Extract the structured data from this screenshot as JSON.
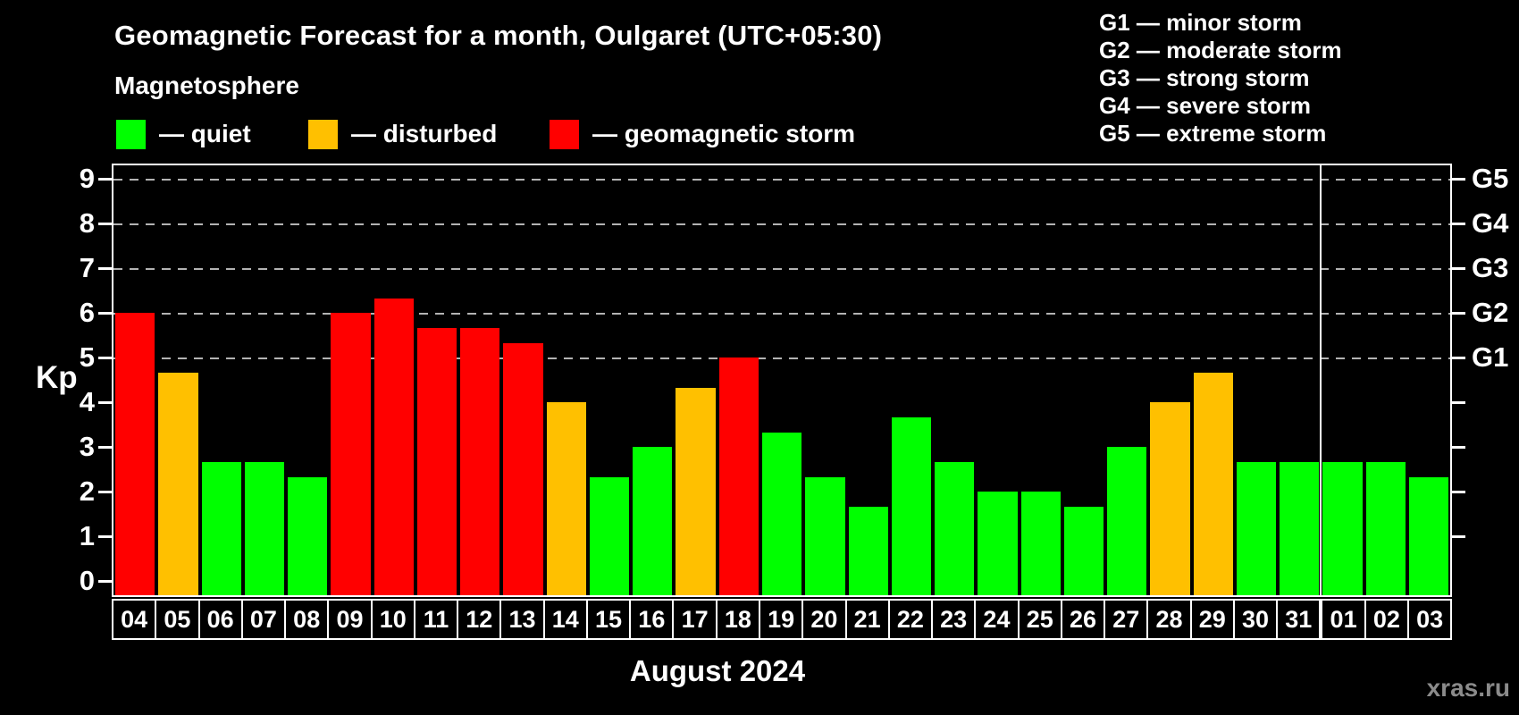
{
  "header": {
    "title": "Geomagnetic Forecast for a month, Oulgaret (UTC+05:30)",
    "subtitle": "Magnetosphere",
    "legend": [
      {
        "key": "quiet",
        "label": "— quiet",
        "color": "#00ff00"
      },
      {
        "key": "disturbed",
        "label": "— disturbed",
        "color": "#ffc000"
      },
      {
        "key": "storm",
        "label": "— geomagnetic storm",
        "color": "#ff0000"
      }
    ],
    "storm_scale": [
      "G1 — minor storm",
      "G2 — moderate storm",
      "G3 — strong storm",
      "G4 — severe storm",
      "G5 — extreme storm"
    ]
  },
  "chart_data": {
    "type": "bar",
    "title": "Geomagnetic Forecast for a month, Oulgaret (UTC+05:30)",
    "ylabel": "Kp",
    "xlabel": "August 2024",
    "ylim": [
      0,
      9
    ],
    "grid": "dashed horizontal lines at Kp 5-9 only",
    "y_ticks": [
      0,
      1,
      2,
      3,
      4,
      5,
      6,
      7,
      8,
      9
    ],
    "right_axis": [
      {
        "kp": 5,
        "label": "G1"
      },
      {
        "kp": 6,
        "label": "G2"
      },
      {
        "kp": 7,
        "label": "G3"
      },
      {
        "kp": 8,
        "label": "G4"
      },
      {
        "kp": 9,
        "label": "G5"
      }
    ],
    "right_minor_ticks": [
      1,
      2,
      3,
      4
    ],
    "month_boundary_index": 28,
    "status_colors": {
      "quiet": "#00ff00",
      "disturbed": "#ffc000",
      "storm": "#ff0000"
    },
    "bars": [
      {
        "day": "04",
        "kp": 6,
        "status": "storm"
      },
      {
        "day": "05",
        "kp": 4.67,
        "status": "disturbed"
      },
      {
        "day": "06",
        "kp": 2.67,
        "status": "quiet"
      },
      {
        "day": "07",
        "kp": 2.67,
        "status": "quiet"
      },
      {
        "day": "08",
        "kp": 2.33,
        "status": "quiet"
      },
      {
        "day": "09",
        "kp": 6,
        "status": "storm"
      },
      {
        "day": "10",
        "kp": 6.33,
        "status": "storm"
      },
      {
        "day": "11",
        "kp": 5.67,
        "status": "storm"
      },
      {
        "day": "12",
        "kp": 5.67,
        "status": "storm"
      },
      {
        "day": "13",
        "kp": 5.33,
        "status": "storm"
      },
      {
        "day": "14",
        "kp": 4,
        "status": "disturbed"
      },
      {
        "day": "15",
        "kp": 2.33,
        "status": "quiet"
      },
      {
        "day": "16",
        "kp": 3,
        "status": "quiet"
      },
      {
        "day": "17",
        "kp": 4.33,
        "status": "disturbed"
      },
      {
        "day": "18",
        "kp": 5,
        "status": "storm"
      },
      {
        "day": "19",
        "kp": 3.33,
        "status": "quiet"
      },
      {
        "day": "20",
        "kp": 2.33,
        "status": "quiet"
      },
      {
        "day": "21",
        "kp": 1.67,
        "status": "quiet"
      },
      {
        "day": "22",
        "kp": 3.67,
        "status": "quiet"
      },
      {
        "day": "23",
        "kp": 2.67,
        "status": "quiet"
      },
      {
        "day": "24",
        "kp": 2,
        "status": "quiet"
      },
      {
        "day": "25",
        "kp": 2,
        "status": "quiet"
      },
      {
        "day": "26",
        "kp": 1.67,
        "status": "quiet"
      },
      {
        "day": "27",
        "kp": 3,
        "status": "quiet"
      },
      {
        "day": "28",
        "kp": 4,
        "status": "disturbed"
      },
      {
        "day": "29",
        "kp": 4.67,
        "status": "disturbed"
      },
      {
        "day": "30",
        "kp": 2.67,
        "status": "quiet"
      },
      {
        "day": "31",
        "kp": 2.67,
        "status": "quiet"
      },
      {
        "day": "01",
        "kp": 2.67,
        "status": "quiet"
      },
      {
        "day": "02",
        "kp": 2.67,
        "status": "quiet"
      },
      {
        "day": "03",
        "kp": 2.33,
        "status": "quiet"
      }
    ]
  },
  "footer": {
    "caption": "August 2024",
    "watermark": "xras.ru"
  }
}
